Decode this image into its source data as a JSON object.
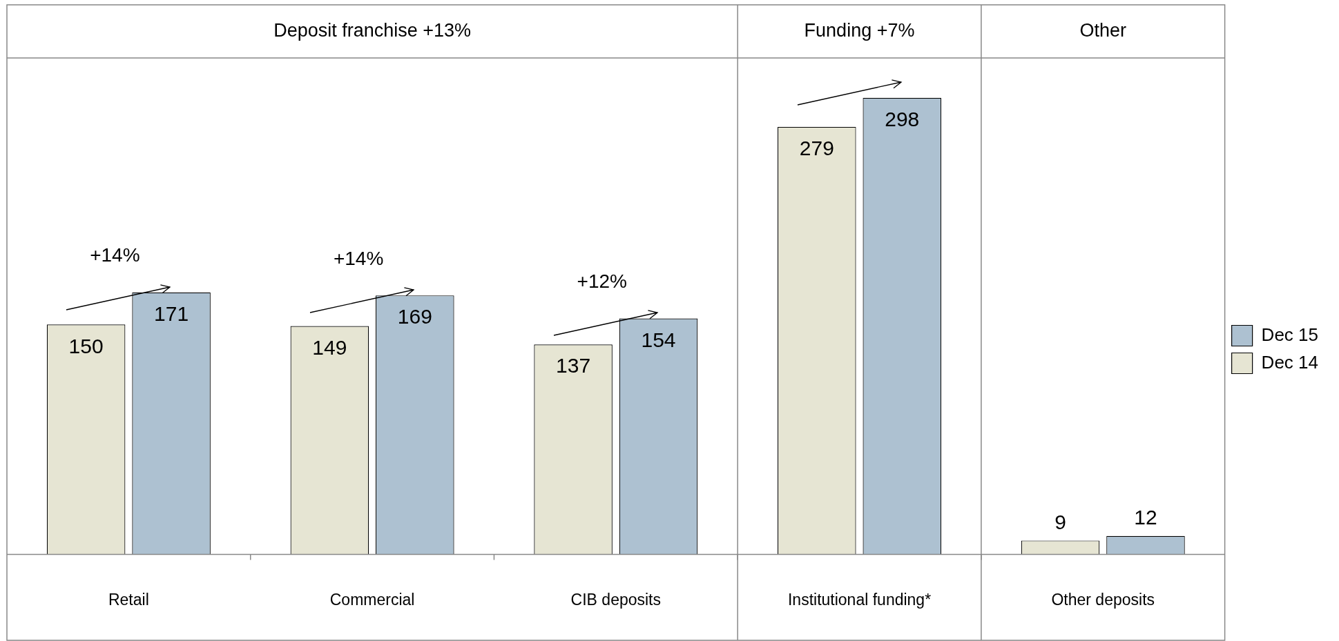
{
  "chart_data": {
    "type": "bar",
    "categories": [
      "Retail",
      "Commercial",
      "CIB deposits",
      "Institutional funding*",
      "Other deposits"
    ],
    "series": [
      {
        "name": "Dec 14",
        "color": "#e6e5d3",
        "values": [
          150,
          149,
          137,
          279,
          9
        ]
      },
      {
        "name": "Dec 15",
        "color": "#adc1d1",
        "values": [
          171,
          169,
          154,
          298,
          12
        ]
      }
    ],
    "ylim": [
      0,
      324
    ],
    "data_labels": true,
    "legend": "right",
    "annotations": [
      "Deposit franchise +13%",
      "Funding +7%",
      "Other",
      "+14%",
      "+14%",
      "+12%"
    ]
  }
}
